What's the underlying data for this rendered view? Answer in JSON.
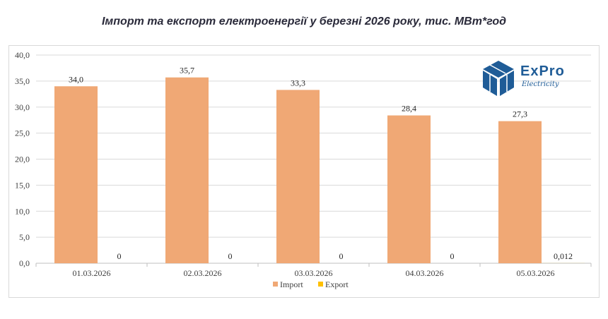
{
  "chart_data": {
    "type": "bar",
    "title": "Імпорт та експорт електроенергії у березні 2026 року, тис. МВт*год",
    "categories": [
      "01.03.2026",
      "02.03.2026",
      "03.03.2026",
      "04.03.2026",
      "05.03.2026"
    ],
    "series": [
      {
        "name": "Import",
        "values": [
          34.0,
          35.7,
          33.3,
          28.4,
          27.3
        ],
        "labels": [
          "34,0",
          "35,7",
          "33,3",
          "28,4",
          "27,3"
        ],
        "color": "#f0a875"
      },
      {
        "name": "Export",
        "values": [
          0,
          0,
          0,
          0,
          0.012
        ],
        "labels": [
          "0",
          "0",
          "0",
          "0",
          "0,012"
        ],
        "color": "#ffc000"
      }
    ],
    "ylim": [
      0,
      40
    ],
    "yticks": [
      "0,0",
      "5,0",
      "10,0",
      "15,0",
      "20,0",
      "25,0",
      "30,0",
      "35,0",
      "40,0"
    ],
    "grid": true,
    "legend": "bottom"
  },
  "logo": {
    "text": "ExPro",
    "subtext": "Electricity",
    "color": "#1f5c97"
  }
}
